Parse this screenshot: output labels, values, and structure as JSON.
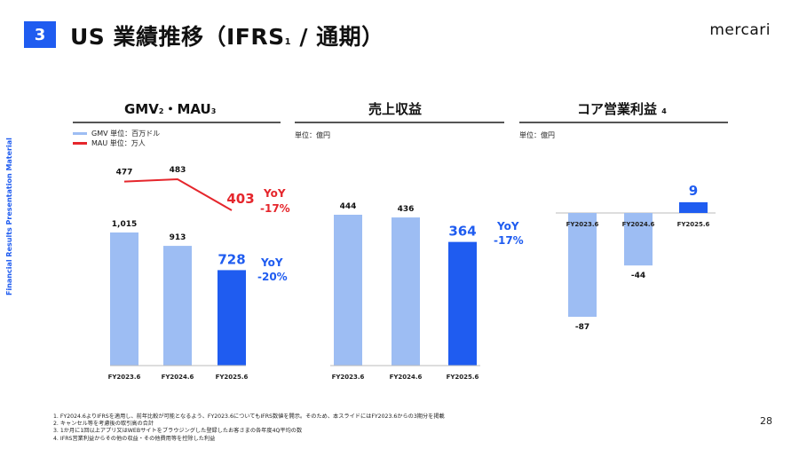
{
  "header": {
    "section_number": "3",
    "title_main": "US 業績推移（IFRS",
    "title_note": "1",
    "title_tail": " / 通期）",
    "brand": "mercari"
  },
  "side_label": "Financial Results Presentation Material",
  "panels": {
    "gmv": {
      "title": "GMV",
      "title_note1": "2",
      "title_mid": "・MAU",
      "title_note2": "3",
      "legend_gmv": "GMV 単位：百万ドル",
      "legend_mau": "MAU 単位：万人"
    },
    "revenue": {
      "title": "売上収益",
      "unit": "単位：億円"
    },
    "op": {
      "title": "コア営業利益",
      "title_note": "4",
      "unit": "単位：億円"
    }
  },
  "colors": {
    "light_bar": "#9dbdf3",
    "dark_bar": "#1f5cf0",
    "mau_line": "#e5262c",
    "accent": "#1f5cf0"
  },
  "chart_data": [
    {
      "type": "bar",
      "title": "GMV",
      "categories": [
        "FY2023.6",
        "FY2024.6",
        "FY2025.6"
      ],
      "series": [
        {
          "name": "GMV",
          "values": [
            1015,
            913,
            728
          ]
        }
      ],
      "value_labels": [
        "1,015",
        "913",
        "728"
      ],
      "yoy": {
        "label": "YoY",
        "value": "-20%"
      },
      "overlay_line": {
        "name": "MAU",
        "values": [
          477,
          483,
          403
        ],
        "labels": [
          "477",
          "483",
          "403"
        ],
        "yoy": {
          "label": "YoY",
          "value": "-17%"
        }
      }
    },
    {
      "type": "bar",
      "title": "売上収益",
      "categories": [
        "FY2023.6",
        "FY2024.6",
        "FY2025.6"
      ],
      "series": [
        {
          "values": [
            444,
            436,
            364
          ]
        }
      ],
      "value_labels": [
        "444",
        "436",
        "364"
      ],
      "yoy": {
        "label": "YoY",
        "value": "-17%"
      }
    },
    {
      "type": "bar",
      "title": "コア営業利益",
      "categories": [
        "FY2023.6",
        "FY2024.6",
        "FY2025.6"
      ],
      "series": [
        {
          "values": [
            -87,
            -44,
            9
          ]
        }
      ],
      "value_labels": [
        "-87",
        "-44",
        "9"
      ]
    }
  ],
  "footnotes": [
    "1. FY2024.6よりIFRSを適用し、前年比較が可能となるよう、FY2023.6についてもIFRS数値を開示。そのため、本スライドにはFY2023.6からの3期分を掲載",
    "2. キャンセル等を考慮後の取引高の合計",
    "3. 1か月に1回以上アプリ又はWEBサイトをブラウジングした登録したお客さまの各年度4Q平均の数",
    "4. IFRS営業利益からその他の収益・その他費用等を控除した利益"
  ],
  "page_number": "28"
}
